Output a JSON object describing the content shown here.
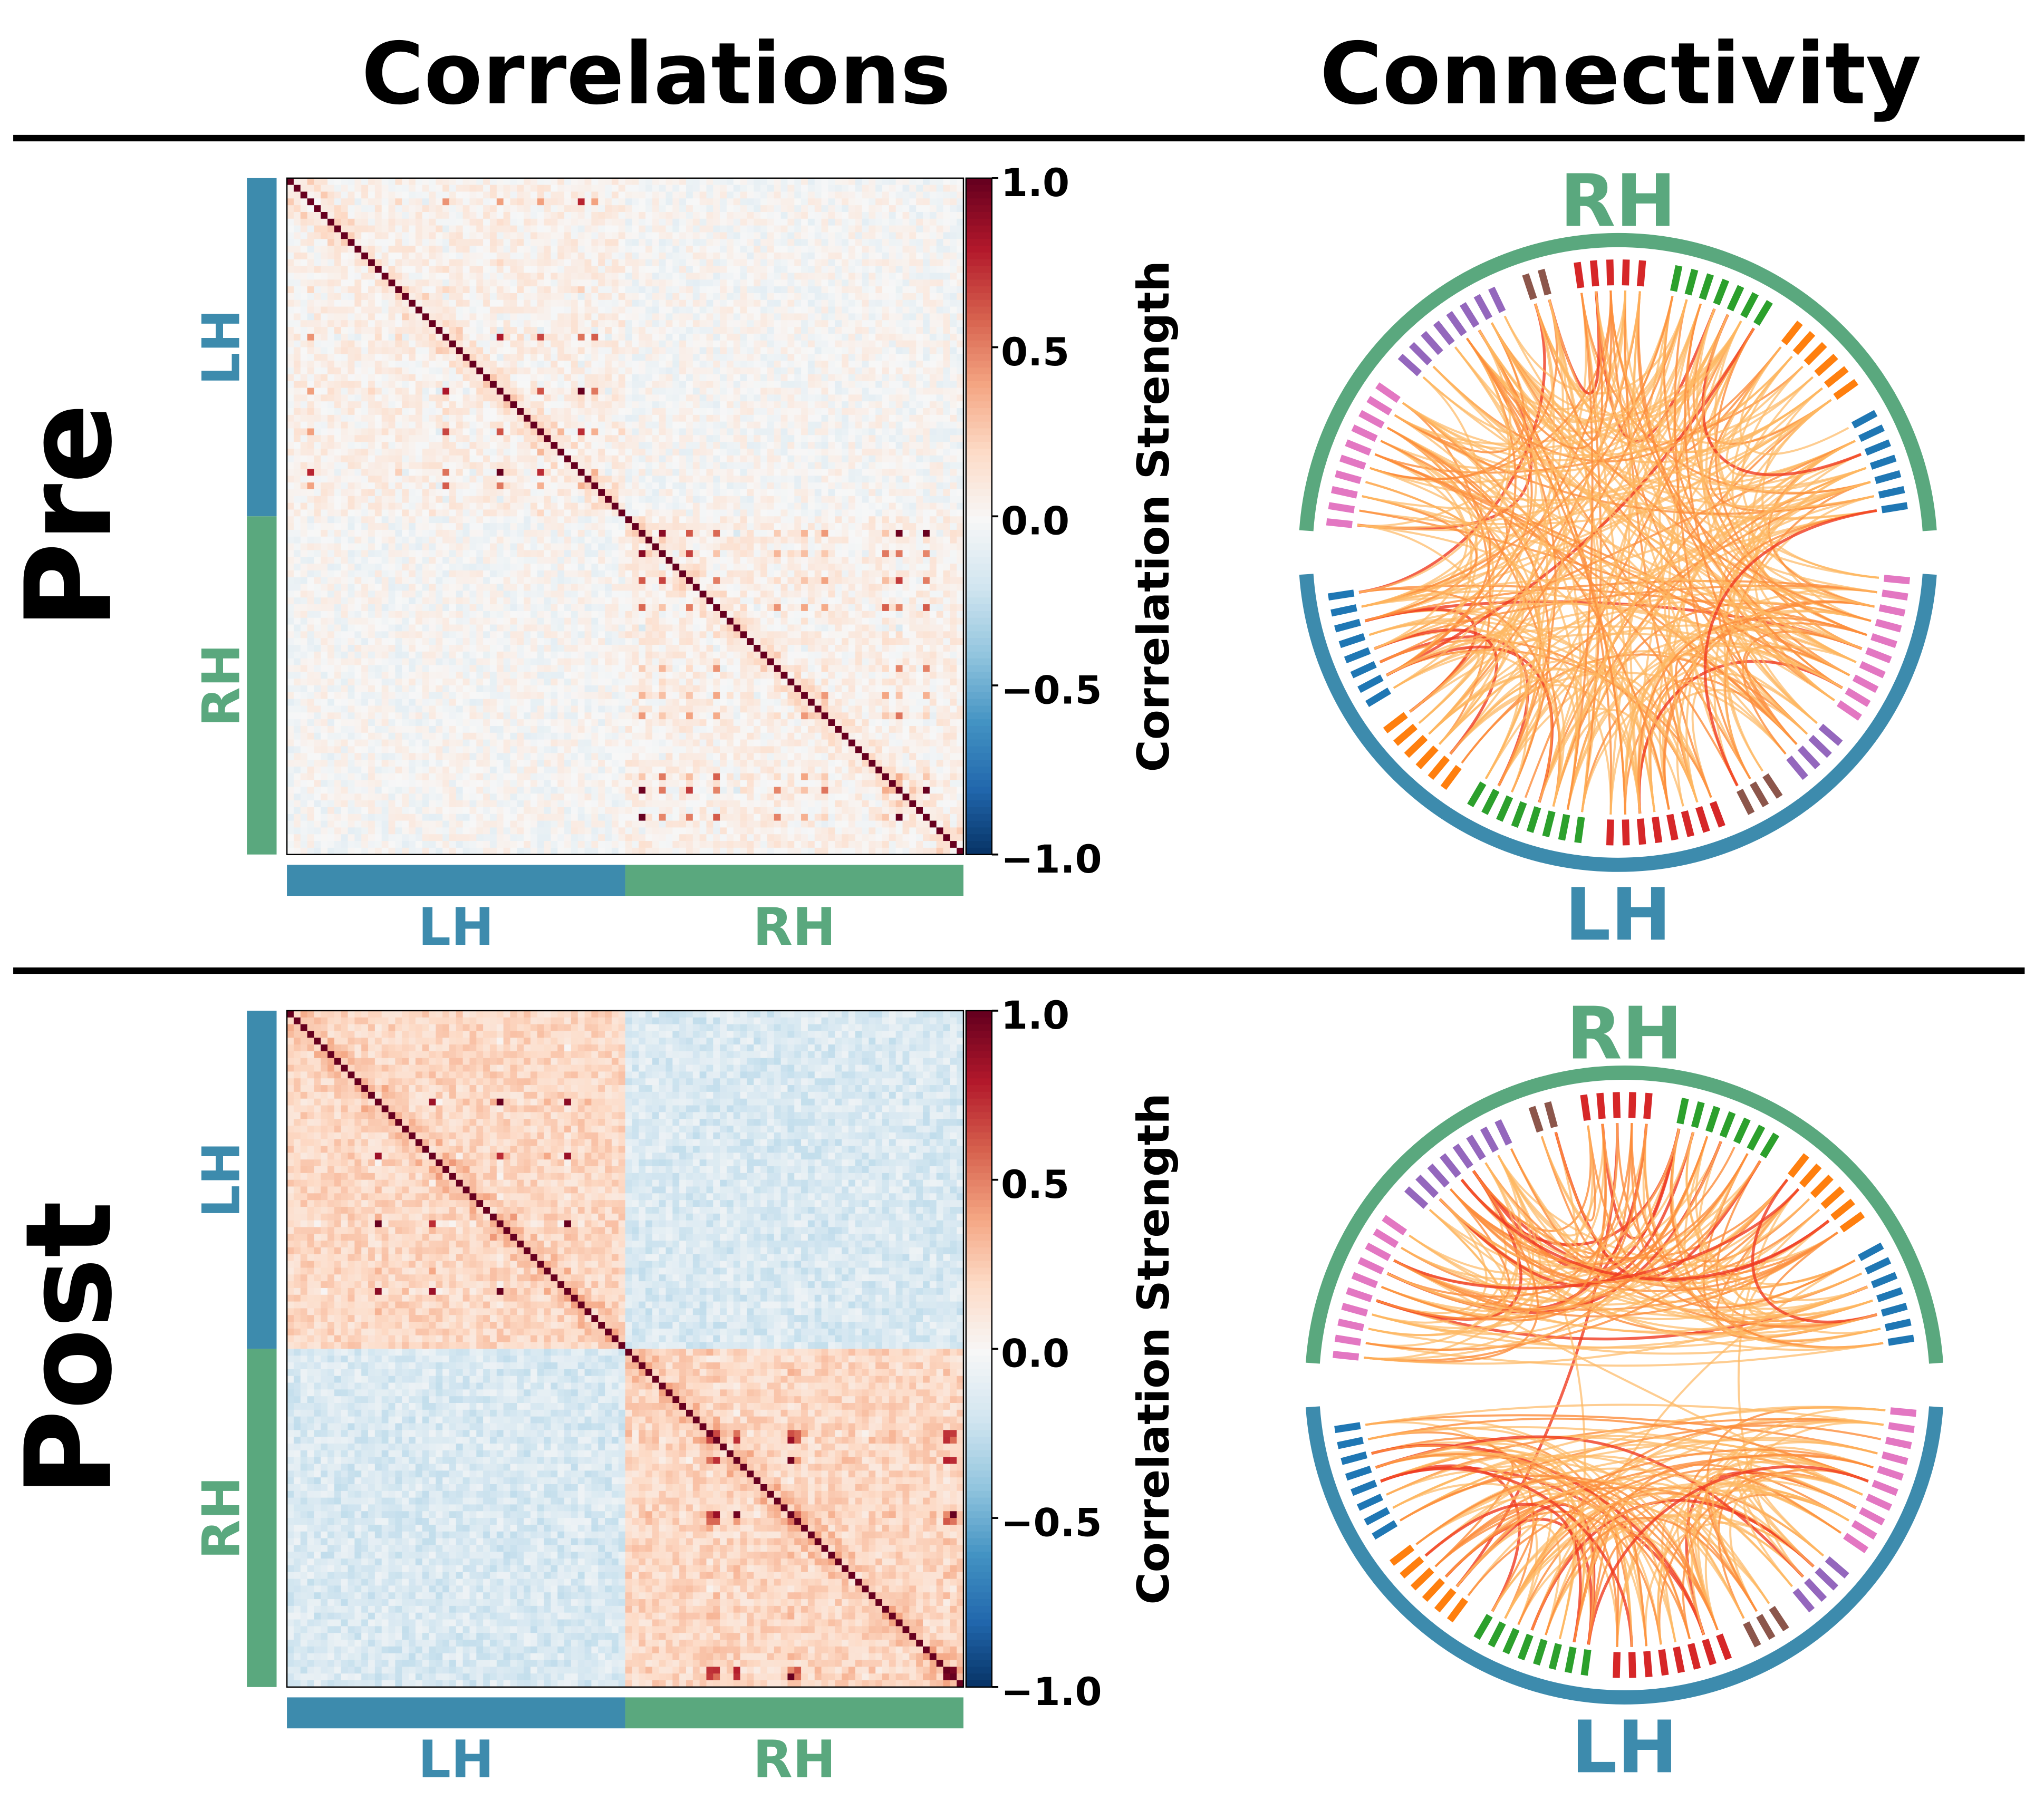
{
  "column_titles": {
    "correlations": "Correlations",
    "connectivity": "Connectivity"
  },
  "colors": {
    "lh": "#3d8bad",
    "rh": "#5aa87e",
    "chord_weak": "#fdb863",
    "chord_mid": "#fd8d3c",
    "chord_strong": "#f03b20"
  },
  "chart_data": [
    {
      "type": "heatmap",
      "row_label": "Pre",
      "hemisphere_labels": {
        "left_axis": [
          "LH",
          "RH"
        ],
        "bottom_axis": [
          "LH",
          "RH"
        ]
      },
      "colorbar": {
        "label": "Correlation Strength",
        "range": [
          -1.0,
          1.0
        ],
        "colormap": "RdBu_r",
        "ticks": [
          "1.0",
          "0.5",
          "0.0",
          "−0.5",
          "−1.0"
        ]
      },
      "n_regions": 100,
      "diagonal": 1.0,
      "approx_block_means": {
        "within_hemisphere": 0.05,
        "between_hemisphere": 0.0
      }
    },
    {
      "type": "chord",
      "row_label": "Pre",
      "hemisphere_labels": {
        "top": "RH",
        "bottom": "LH"
      },
      "node_groups_rh": [
        {
          "color": "#e377c2",
          "count": 10
        },
        {
          "color": "#9467bd",
          "count": 8
        },
        {
          "color": "#8c564b",
          "count": 2
        },
        {
          "color": "#d62728",
          "count": 5
        },
        {
          "color": "#2ca02c",
          "count": 7
        },
        {
          "color": "#ff7f0e",
          "count": 6
        },
        {
          "color": "#1f77b4",
          "count": 7
        }
      ],
      "node_groups_lh": [
        {
          "color": "#e377c2",
          "count": 10
        },
        {
          "color": "#9467bd",
          "count": 4
        },
        {
          "color": "#8c564b",
          "count": 3
        },
        {
          "color": "#d62728",
          "count": 8
        },
        {
          "color": "#2ca02c",
          "count": 8
        },
        {
          "color": "#ff7f0e",
          "count": 6
        },
        {
          "color": "#1f77b4",
          "count": 8
        }
      ],
      "connection_pattern": "mixed within and between hemispheres"
    },
    {
      "type": "heatmap",
      "row_label": "Post",
      "hemisphere_labels": {
        "left_axis": [
          "LH",
          "RH"
        ],
        "bottom_axis": [
          "LH",
          "RH"
        ]
      },
      "colorbar": {
        "label": "Correlation Strength",
        "range": [
          -1.0,
          1.0
        ],
        "colormap": "RdBu_r",
        "ticks": [
          "1.0",
          "0.5",
          "0.0",
          "−0.5",
          "−1.0"
        ]
      },
      "n_regions": 100,
      "diagonal": 1.0,
      "approx_block_means": {
        "within_hemisphere": 0.2,
        "between_hemisphere": -0.15
      }
    },
    {
      "type": "chord",
      "row_label": "Post",
      "hemisphere_labels": {
        "top": "RH",
        "bottom": "LH"
      },
      "node_groups_rh": [
        {
          "color": "#e377c2",
          "count": 10
        },
        {
          "color": "#9467bd",
          "count": 8
        },
        {
          "color": "#8c564b",
          "count": 2
        },
        {
          "color": "#d62728",
          "count": 5
        },
        {
          "color": "#2ca02c",
          "count": 7
        },
        {
          "color": "#ff7f0e",
          "count": 6
        },
        {
          "color": "#1f77b4",
          "count": 7
        }
      ],
      "node_groups_lh": [
        {
          "color": "#e377c2",
          "count": 10
        },
        {
          "color": "#9467bd",
          "count": 4
        },
        {
          "color": "#8c564b",
          "count": 3
        },
        {
          "color": "#d62728",
          "count": 8
        },
        {
          "color": "#2ca02c",
          "count": 8
        },
        {
          "color": "#ff7f0e",
          "count": 6
        },
        {
          "color": "#1f77b4",
          "count": 8
        }
      ],
      "connection_pattern": "mostly within hemisphere"
    }
  ]
}
